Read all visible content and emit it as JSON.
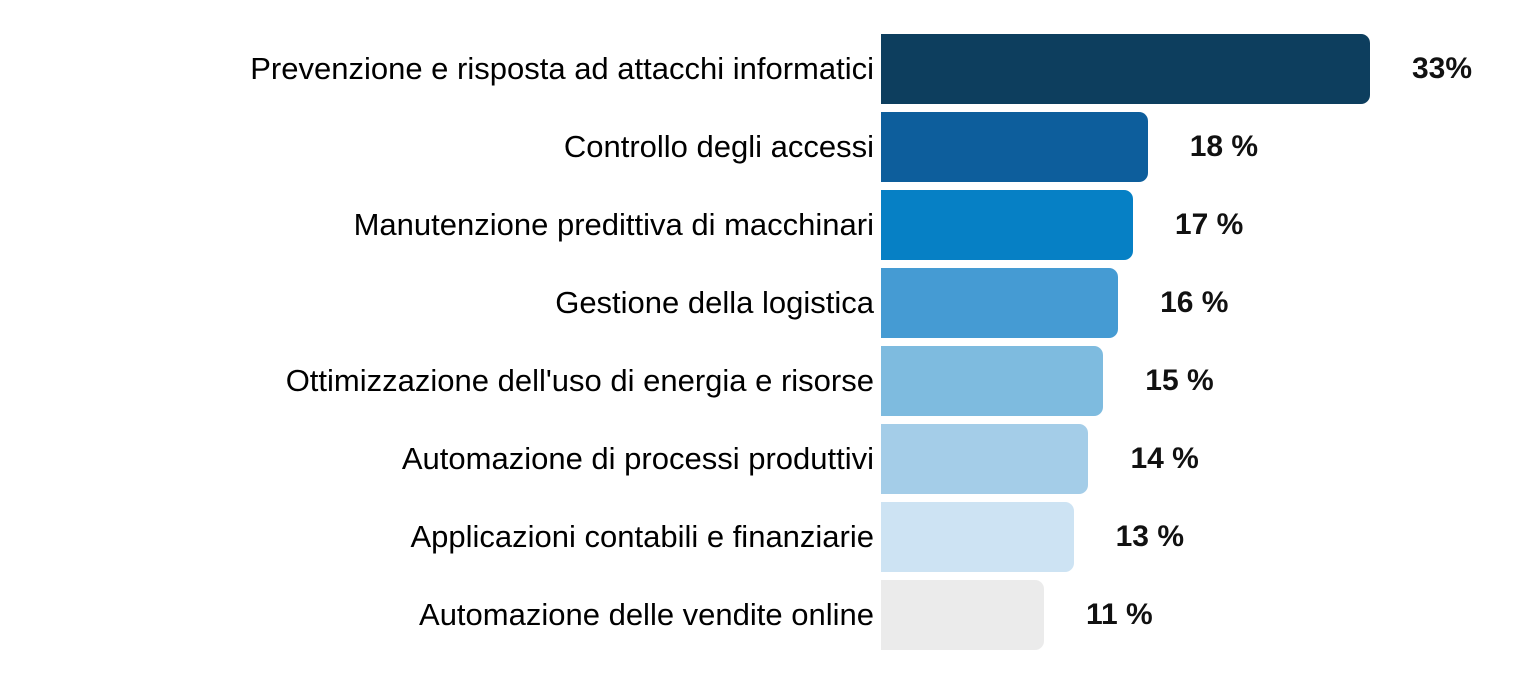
{
  "chart_data": {
    "type": "bar",
    "orientation": "horizontal",
    "title": "",
    "xlabel": "",
    "ylabel": "",
    "grid": false,
    "legend": false,
    "xlim": [
      0,
      33
    ],
    "categories": [
      "Prevenzione e risposta ad attacchi informatici",
      "Controllo degli accessi",
      "Manutenzione predittiva di macchinari",
      "Gestione della logistica",
      "Ottimizzazione dell'uso di energia e risorse",
      "Automazione di processi produttivi",
      "Applicazioni contabili e finanziarie",
      "Automazione delle vendite online"
    ],
    "values": [
      33,
      18,
      17,
      16,
      15,
      14,
      13,
      11
    ],
    "value_labels": [
      "33%",
      "18 %",
      "17 %",
      "16 %",
      "15 %",
      "14 %",
      "13 %",
      "11 %"
    ],
    "bar_colors": [
      "#0d3e5e",
      "#0d5e9c",
      "#0680c5",
      "#459bd3",
      "#7ebbdf",
      "#a4cde8",
      "#cde3f3",
      "#ebebeb"
    ],
    "category_label_color": "#000000",
    "value_label_color": "#111111"
  }
}
